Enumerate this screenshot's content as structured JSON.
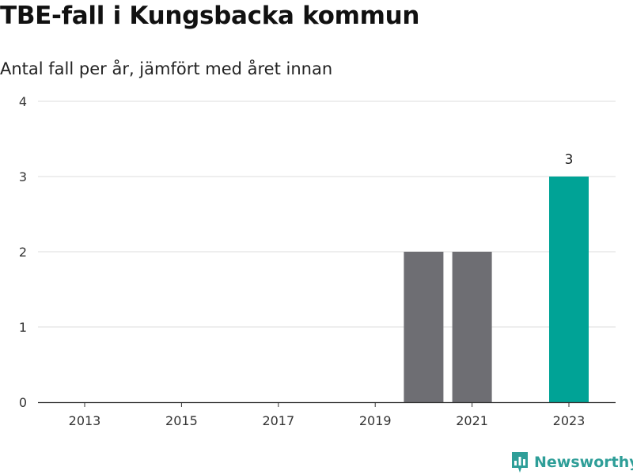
{
  "brand": {
    "name": "Newsworthy",
    "accent_color": "#2e9e98",
    "icon": "bar-chart-logo-icon"
  },
  "chart_data": {
    "type": "bar",
    "title": "TBE-fall i Kungsbacka kommun",
    "subtitle": "Antal fall per år, jämfört med året innan",
    "xlabel": "",
    "ylabel": "",
    "x": [
      2013,
      2014,
      2015,
      2016,
      2017,
      2018,
      2019,
      2020,
      2021,
      2022,
      2023
    ],
    "values": [
      0,
      0,
      0,
      0,
      0,
      0,
      0,
      2,
      2,
      null,
      3
    ],
    "x_tick_labels": [
      "2013",
      "2015",
      "2017",
      "2019",
      "2021",
      "2023"
    ],
    "y_tick_labels": [
      "0",
      "1",
      "2",
      "3",
      "4"
    ],
    "ylim": [
      0,
      4
    ],
    "grid": true,
    "highlight_x": 2023,
    "data_labels": [
      {
        "x": 2023,
        "value": "3"
      }
    ],
    "colors": {
      "bar": "#6e6e73",
      "highlight": "#00a396",
      "grid": "#dddddd",
      "axis": "#333333"
    }
  }
}
